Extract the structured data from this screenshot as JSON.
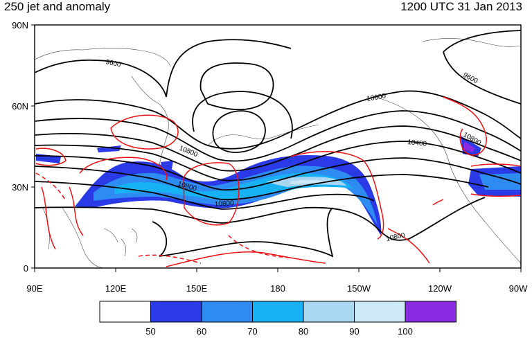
{
  "header": {
    "title_left": "250 jet and anomaly",
    "title_right": "1200 UTC 31 Jan 2013"
  },
  "map": {
    "lat_labels": [
      "90N",
      "60N",
      "30N",
      "0"
    ],
    "lon_labels": [
      "90E",
      "120E",
      "150E",
      "180",
      "150W",
      "120W",
      "90W"
    ],
    "contour_labels": [
      "9600",
      "9600",
      "10000",
      "10400",
      "10800",
      "10800",
      "10800",
      "10800",
      "10800"
    ]
  },
  "colorbar": {
    "colors": [
      "#ffffff",
      "#2a3ae6",
      "#2d8bf2",
      "#17b2f3",
      "#a9d7f2",
      "#cde9f8",
      "#8a2be2"
    ],
    "labels": [
      "50",
      "60",
      "70",
      "80",
      "90",
      "100"
    ]
  }
}
